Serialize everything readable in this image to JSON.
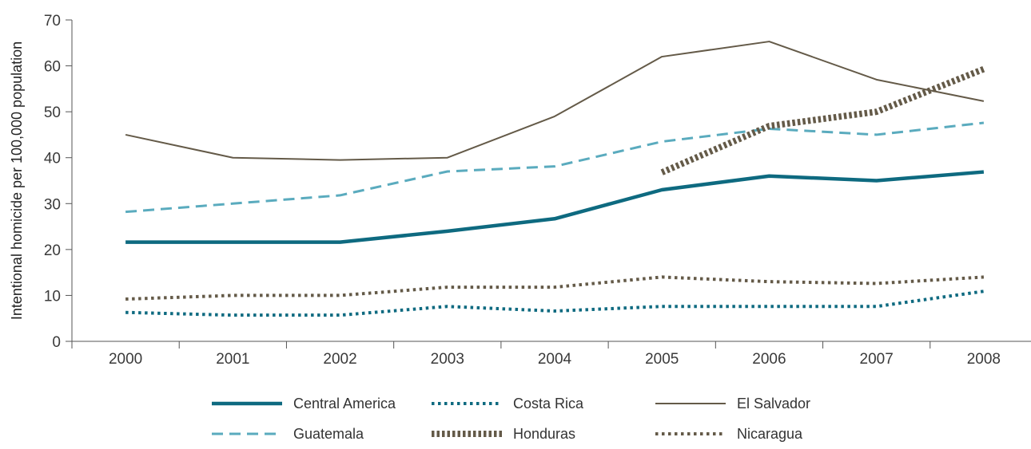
{
  "chart_data": {
    "type": "line",
    "ylabel": "Intentional homicide per 100,000 population",
    "xlabel": "",
    "title": "",
    "categories": [
      "2000",
      "2001",
      "2002",
      "2003",
      "2004",
      "2005",
      "2006",
      "2007",
      "2008"
    ],
    "ylim": [
      0,
      70
    ],
    "yticks": [
      0,
      10,
      20,
      30,
      40,
      50,
      60,
      70
    ],
    "grid": false,
    "legend_position": "bottom",
    "series": [
      {
        "name": "Central America",
        "color": "#0e6a80",
        "style": "solid-thick",
        "values": [
          21.6,
          21.6,
          21.6,
          24.0,
          26.7,
          33.0,
          36.0,
          35.0,
          36.9
        ]
      },
      {
        "name": "Costa Rica",
        "color": "#0e6a80",
        "style": "dotted",
        "values": [
          6.3,
          5.7,
          5.7,
          7.6,
          6.6,
          7.6,
          7.6,
          7.6,
          10.9
        ]
      },
      {
        "name": "El Salvador",
        "color": "#645a48",
        "style": "solid-thin",
        "values": [
          45.0,
          40.0,
          39.5,
          40.0,
          49.0,
          62.0,
          65.3,
          57.0,
          52.3
        ]
      },
      {
        "name": "Guatemala",
        "color": "#5aabbe",
        "style": "dashed",
        "values": [
          28.2,
          30.0,
          31.8,
          37.0,
          38.1,
          43.5,
          46.3,
          45.0,
          47.6
        ]
      },
      {
        "name": "Honduras",
        "color": "#645a48",
        "style": "dotted-thick",
        "values": [
          null,
          null,
          null,
          null,
          null,
          36.8,
          46.9,
          50.0,
          59.3
        ]
      },
      {
        "name": "Nicaragua",
        "color": "#645a48",
        "style": "dotted",
        "values": [
          9.2,
          10.0,
          10.0,
          11.8,
          11.8,
          14.0,
          13.0,
          12.6,
          14.0
        ]
      }
    ]
  }
}
